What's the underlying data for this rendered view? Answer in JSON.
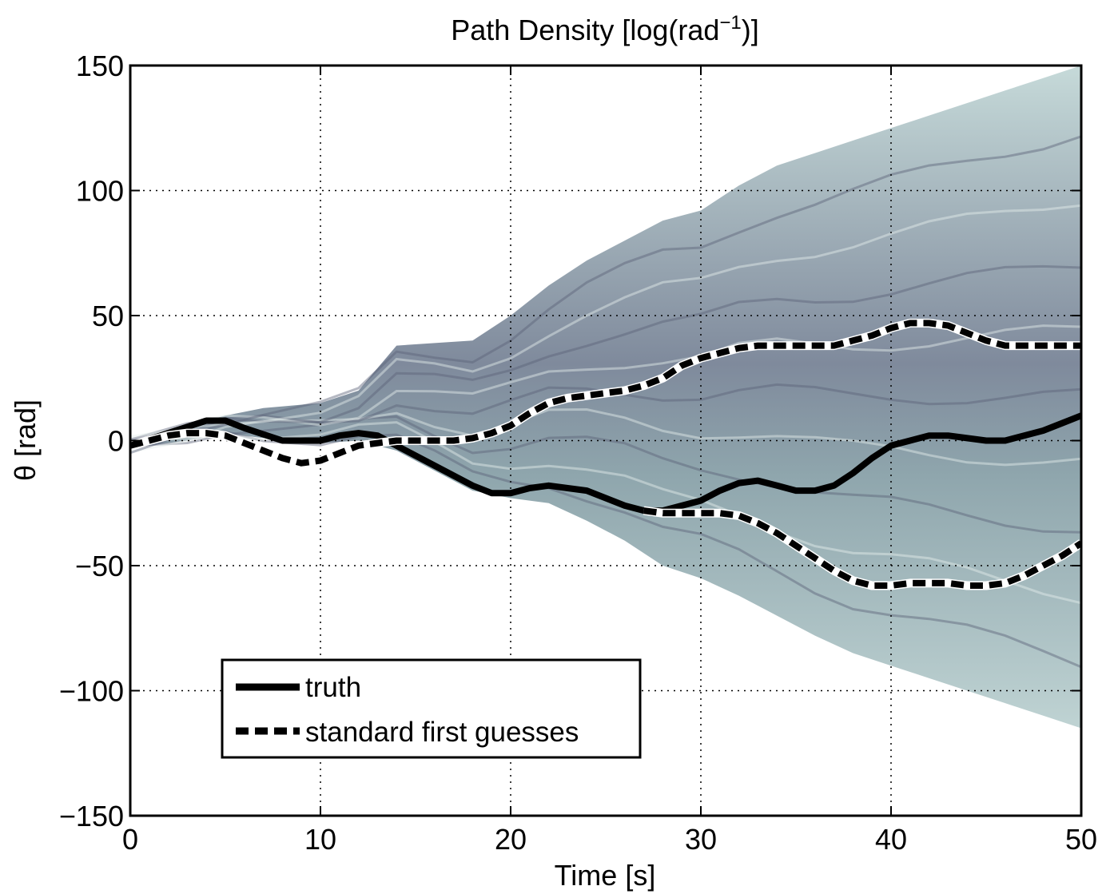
{
  "chart_data": {
    "type": "area",
    "title": "Path Density [log(rad",
    "title_sup": "−1",
    "title_end": ")]",
    "xlabel": "Time [s]",
    "ylabel": "θ [rad]",
    "xlim": [
      0,
      50
    ],
    "ylim": [
      -150,
      150
    ],
    "xticks": [
      0,
      10,
      20,
      30,
      40,
      50
    ],
    "xtick_labels": [
      "0",
      "10",
      "20",
      "30",
      "40",
      "50"
    ],
    "yticks": [
      150,
      100,
      50,
      0,
      -50,
      -100,
      -150
    ],
    "ytick_labels": [
      "150",
      "100",
      "50",
      "0",
      "−50",
      "−100",
      "−150"
    ],
    "grid": true,
    "legend_position": "bottom-left",
    "density_band": {
      "x": [
        0,
        3,
        5,
        7,
        10,
        12,
        14,
        16,
        18,
        20,
        22,
        24,
        26,
        28,
        30,
        32,
        34,
        36,
        38,
        40,
        42,
        44,
        46,
        48,
        50
      ],
      "upper": [
        -1,
        6,
        10,
        13,
        15,
        20,
        38,
        39,
        40,
        50,
        62,
        72,
        80,
        88,
        92,
        102,
        110,
        115,
        120,
        125,
        130,
        135,
        140,
        145,
        150
      ],
      "lower": [
        -3,
        0,
        3,
        1,
        -1,
        0,
        -4,
        -12,
        -20,
        -23,
        -25,
        -32,
        -40,
        -50,
        -55,
        -62,
        -70,
        -78,
        -85,
        -90,
        -95,
        -100,
        -105,
        -110,
        -115
      ]
    },
    "series": [
      {
        "name": "truth",
        "style": "solid",
        "x": [
          0,
          2,
          4,
          5,
          6,
          8,
          9,
          10,
          11,
          12,
          13,
          14,
          16,
          18,
          19,
          20,
          21,
          22,
          23,
          24,
          26,
          27,
          28,
          29,
          30,
          31,
          32,
          33,
          34,
          35,
          36,
          37,
          38,
          39,
          40,
          41,
          42,
          43,
          44,
          45,
          46,
          47,
          48,
          49,
          50
        ],
        "y": [
          -2,
          3,
          8,
          8,
          5,
          0,
          0,
          0,
          2,
          3,
          2,
          -2,
          -10,
          -18,
          -21,
          -21,
          -19,
          -18,
          -19,
          -20,
          -26,
          -28,
          -28,
          -26,
          -24,
          -20,
          -17,
          -16,
          -18,
          -20,
          -20,
          -18,
          -13,
          -7,
          -2,
          0,
          2,
          2,
          1,
          0,
          0,
          2,
          4,
          7,
          10
        ]
      },
      {
        "name": "standard first guesses",
        "style": "dashed",
        "branches": [
          {
            "x": [
              0,
              2,
              3,
              4,
              5,
              6,
              8,
              9,
              10,
              11,
              12,
              13,
              14,
              15,
              16,
              17,
              18,
              19,
              20,
              21,
              22,
              23,
              24,
              25,
              26,
              27,
              28,
              29,
              30,
              31,
              32,
              33,
              34,
              35,
              36,
              37,
              38,
              39,
              40,
              41,
              42,
              43,
              44,
              45,
              46,
              47,
              48,
              49,
              50
            ],
            "y": [
              -2,
              2,
              3,
              3,
              2,
              -1,
              -7,
              -9,
              -8,
              -5,
              -2,
              -1,
              0,
              0,
              0,
              0,
              1,
              3,
              6,
              11,
              15,
              17,
              18,
              19,
              20,
              22,
              25,
              30,
              33,
              35,
              37,
              38,
              38,
              38,
              38,
              38,
              40,
              42,
              45,
              47,
              47,
              46,
              43,
              40,
              38,
              38,
              38,
              38,
              38
            ]
          },
          {
            "x": [
              27,
              28,
              29,
              30,
              31,
              32,
              33,
              34,
              35,
              36,
              37,
              38,
              39,
              40,
              41,
              42,
              43,
              44,
              45,
              46,
              47,
              48,
              49,
              50
            ],
            "y": [
              -28,
              -29,
              -29,
              -29,
              -29,
              -30,
              -33,
              -37,
              -42,
              -47,
              -52,
              -56,
              -58,
              -58,
              -57,
              -57,
              -57,
              -58,
              -58,
              -57,
              -54,
              -50,
              -46,
              -41
            ]
          }
        ]
      }
    ]
  }
}
